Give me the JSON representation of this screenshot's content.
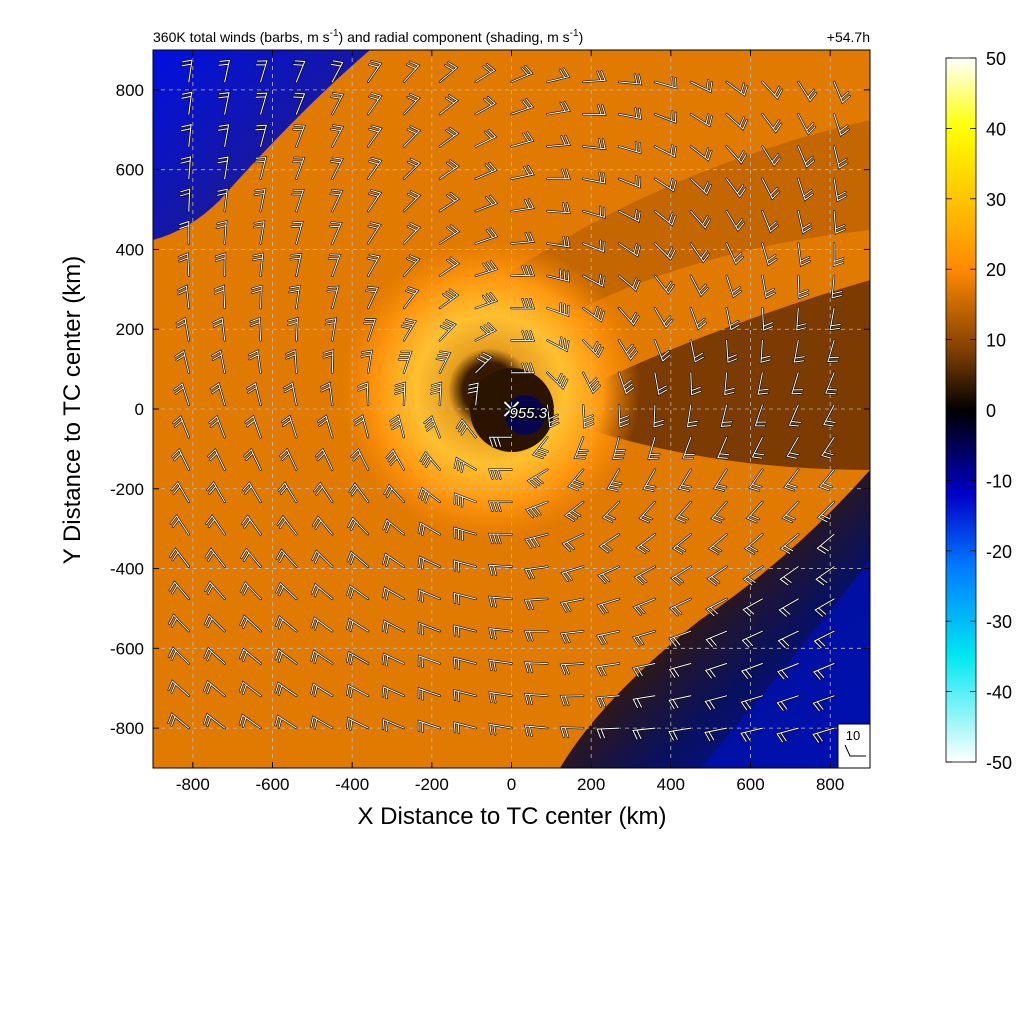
{
  "chart_data": {
    "type": "heatmap",
    "title": "360K total winds (barbs, m s",
    "title_sup": "-1",
    "title_mid": ") and radial component (shading, m s",
    "title_sup2": "-1",
    "title_end": ")",
    "valid_time": "+54.7h",
    "xlabel": "X Distance to TC center (km)",
    "ylabel": "Y Distance to TC center (km)",
    "xlim": [
      -900,
      900
    ],
    "ylim": [
      -900,
      900
    ],
    "xticks": [
      -800,
      -600,
      -400,
      -200,
      0,
      200,
      400,
      600,
      800
    ],
    "yticks": [
      -800,
      -600,
      -400,
      -200,
      0,
      200,
      400,
      600,
      800
    ],
    "grid": true,
    "colorbar": {
      "range": [
        -50,
        50
      ],
      "ticks": [
        50,
        40,
        30,
        20,
        10,
        0,
        -10,
        -20,
        -30,
        -40,
        -50
      ],
      "stops": [
        {
          "v": -50,
          "c": "#ffffff"
        },
        {
          "v": -35,
          "c": "#00e8f0"
        },
        {
          "v": -22,
          "c": "#0078ff"
        },
        {
          "v": -12,
          "c": "#0000c8"
        },
        {
          "v": 0,
          "c": "#000000"
        },
        {
          "v": 8,
          "c": "#7a3c00"
        },
        {
          "v": 20,
          "c": "#ff8a00"
        },
        {
          "v": 40,
          "c": "#ffff00"
        },
        {
          "v": 50,
          "c": "#ffffff"
        }
      ]
    },
    "center_marker": {
      "x": 0,
      "y": 0,
      "label": "955.3"
    },
    "reference_barb": {
      "label": "10"
    },
    "barb_spacing_km": 90
  }
}
